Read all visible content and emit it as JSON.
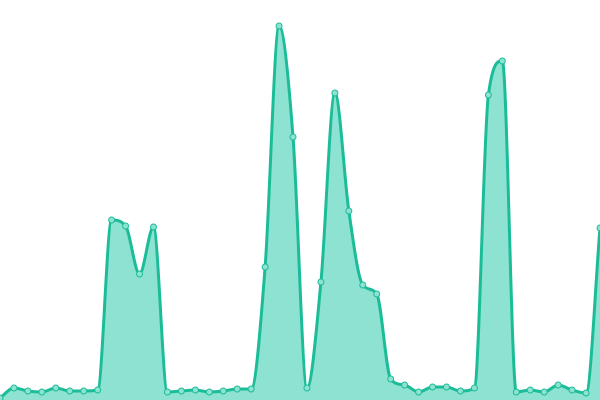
{
  "chart_data": {
    "type": "area",
    "title": "",
    "xlabel": "",
    "ylabel": "",
    "grid": false,
    "axes_visible": false,
    "legend": "none",
    "x": [
      0,
      1,
      2,
      3,
      4,
      5,
      6,
      7,
      8,
      9,
      10,
      11,
      12,
      13,
      14,
      15,
      16,
      17,
      18,
      19,
      20,
      21,
      22,
      23,
      24,
      25,
      26,
      27,
      28,
      29,
      30,
      31,
      32,
      33,
      34,
      35,
      36,
      37,
      38,
      39,
      40,
      41,
      42,
      43
    ],
    "xlim": [
      0,
      43
    ],
    "ylim": [
      0,
      400
    ],
    "series": [
      {
        "values": [
          2,
          12,
          9,
          8,
          12,
          9,
          9,
          10,
          180,
          174,
          126,
          173,
          8,
          9,
          10,
          8,
          9,
          11,
          11,
          133,
          374,
          263,
          12,
          118,
          307,
          189,
          115,
          106,
          21,
          15,
          8,
          13,
          13,
          9,
          12,
          305,
          339,
          8,
          10,
          8,
          15,
          10,
          7,
          172
        ]
      }
    ],
    "colors": {
      "line": "#1bbc98",
      "fill": "#8de2d1",
      "point_fill": "#8de2d1",
      "point_stroke": "#1bbc98"
    }
  }
}
